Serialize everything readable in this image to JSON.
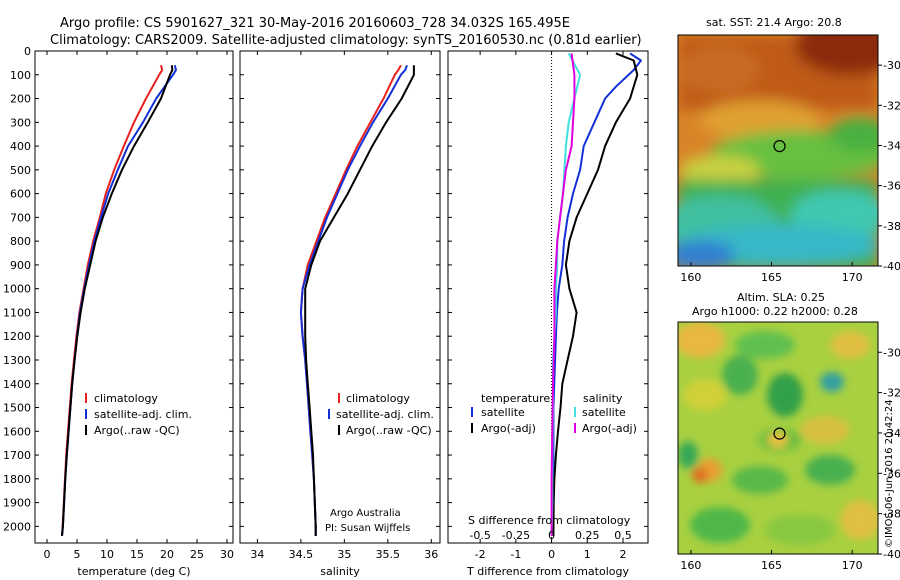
{
  "header": {
    "line1": "Argo profile: CS 5901627_321 30-May-2016 20160603_728 34.032S 165.495E",
    "line2": "Climatology: CARS2009. Satellite-adjusted climatology: synTS_20160530.nc (0.81d earlier)"
  },
  "colors": {
    "climatology": "#e8201e",
    "satellite": "#1230d8",
    "argo": "#000000",
    "sal_satellite": "#40e0e0",
    "sal_argo": "#e000e0"
  },
  "chart_data": [
    {
      "type": "line",
      "xlabel": "temperature (deg C)",
      "xlim": [
        -2,
        31
      ],
      "ylim": [
        2070,
        0
      ],
      "xticks": [
        "0",
        "5",
        "10",
        "15",
        "20",
        "25",
        "30"
      ],
      "yticks": [
        "0",
        "100",
        "200",
        "300",
        "400",
        "500",
        "600",
        "700",
        "800",
        "900",
        "1000",
        "1100",
        "1200",
        "1300",
        "1400",
        "1500",
        "1600",
        "1700",
        "1800",
        "1900",
        "2000"
      ],
      "legend": [
        "climatology",
        "satellite-adj. clim.",
        "Argo(..raw -QC)"
      ],
      "series": [
        {
          "name": "climatology",
          "color": "#e8201e",
          "points": [
            [
              19,
              60
            ],
            [
              19.2,
              80
            ],
            [
              18.7,
              100
            ],
            [
              16.5,
              200
            ],
            [
              14.5,
              300
            ],
            [
              12.8,
              400
            ],
            [
              11.2,
              500
            ],
            [
              9.8,
              600
            ],
            [
              8.8,
              700
            ],
            [
              7.7,
              800
            ],
            [
              6.8,
              900
            ],
            [
              6.1,
              1000
            ],
            [
              5.4,
              1100
            ],
            [
              4.9,
              1200
            ],
            [
              4.5,
              1300
            ],
            [
              4.1,
              1400
            ],
            [
              3.8,
              1500
            ],
            [
              3.5,
              1600
            ],
            [
              3.2,
              1700
            ],
            [
              3,
              1800
            ],
            [
              2.8,
              1900
            ],
            [
              2.6,
              2000
            ],
            [
              2.5,
              2040
            ]
          ]
        },
        {
          "name": "satellite-adj. clim.",
          "color": "#1230d8",
          "points": [
            [
              21.3,
              60
            ],
            [
              21.5,
              80
            ],
            [
              21,
              100
            ],
            [
              18.2,
              200
            ],
            [
              16,
              300
            ],
            [
              13.5,
              400
            ],
            [
              11.8,
              500
            ],
            [
              10.2,
              600
            ],
            [
              9,
              700
            ],
            [
              7.9,
              800
            ],
            [
              7,
              900
            ],
            [
              6.2,
              1000
            ],
            [
              5.5,
              1100
            ],
            [
              5,
              1200
            ],
            [
              4.6,
              1300
            ],
            [
              4.2,
              1400
            ],
            [
              3.9,
              1500
            ],
            [
              3.6,
              1600
            ],
            [
              3.3,
              1700
            ],
            [
              3.05,
              1800
            ],
            [
              2.85,
              1900
            ],
            [
              2.65,
              2000
            ],
            [
              2.5,
              2040
            ]
          ]
        },
        {
          "name": "Argo(..raw -QC)",
          "color": "#000000",
          "points": [
            [
              20.8,
              60
            ],
            [
              20.9,
              80
            ],
            [
              20.5,
              100
            ],
            [
              19,
              200
            ],
            [
              16.8,
              300
            ],
            [
              14.5,
              400
            ],
            [
              12.5,
              500
            ],
            [
              10.8,
              600
            ],
            [
              9.3,
              700
            ],
            [
              8.1,
              800
            ],
            [
              7.2,
              900
            ],
            [
              6.3,
              1000
            ],
            [
              5.6,
              1100
            ],
            [
              5.05,
              1200
            ],
            [
              4.6,
              1300
            ],
            [
              4.2,
              1400
            ],
            [
              3.9,
              1500
            ],
            [
              3.6,
              1600
            ],
            [
              3.3,
              1700
            ],
            [
              3.05,
              1800
            ],
            [
              2.85,
              1900
            ],
            [
              2.65,
              2000
            ],
            [
              2.5,
              2040
            ]
          ]
        }
      ]
    },
    {
      "type": "line",
      "xlabel": "salinity",
      "xlim": [
        33.8,
        36.1
      ],
      "ylim": [
        2070,
        0
      ],
      "xticks": [
        "34",
        "34.5",
        "35",
        "35.5",
        "36"
      ],
      "legend": [
        "climatology",
        "satellite-adj. clim.",
        "Argo(..raw -QC)"
      ],
      "series": [
        {
          "name": "climatology",
          "color": "#e8201e",
          "points": [
            [
              35.65,
              60
            ],
            [
              35.62,
              80
            ],
            [
              35.58,
              100
            ],
            [
              35.45,
              200
            ],
            [
              35.3,
              300
            ],
            [
              35.15,
              400
            ],
            [
              35.02,
              500
            ],
            [
              34.9,
              600
            ],
            [
              34.78,
              700
            ],
            [
              34.68,
              800
            ],
            [
              34.58,
              900
            ],
            [
              34.52,
              1000
            ],
            [
              34.5,
              1100
            ],
            [
              34.52,
              1200
            ],
            [
              34.55,
              1300
            ],
            [
              34.57,
              1400
            ],
            [
              34.59,
              1500
            ],
            [
              34.61,
              1600
            ],
            [
              34.63,
              1700
            ],
            [
              34.65,
              1800
            ],
            [
              34.66,
              1900
            ],
            [
              34.67,
              2000
            ],
            [
              34.67,
              2040
            ]
          ]
        },
        {
          "name": "satellite-adj. clim.",
          "color": "#1230d8",
          "points": [
            [
              35.72,
              60
            ],
            [
              35.7,
              80
            ],
            [
              35.65,
              100
            ],
            [
              35.5,
              200
            ],
            [
              35.33,
              300
            ],
            [
              35.18,
              400
            ],
            [
              35.04,
              500
            ],
            [
              34.92,
              600
            ],
            [
              34.8,
              700
            ],
            [
              34.7,
              800
            ],
            [
              34.6,
              900
            ],
            [
              34.52,
              1000
            ],
            [
              34.5,
              1100
            ],
            [
              34.52,
              1200
            ],
            [
              34.55,
              1300
            ],
            [
              34.57,
              1400
            ],
            [
              34.59,
              1500
            ],
            [
              34.61,
              1600
            ],
            [
              34.63,
              1700
            ],
            [
              34.65,
              1800
            ],
            [
              34.66,
              1900
            ],
            [
              34.67,
              2000
            ],
            [
              34.67,
              2040
            ]
          ]
        },
        {
          "name": "Argo(..raw -QC)",
          "color": "#000000",
          "points": [
            [
              35.8,
              60
            ],
            [
              35.8,
              100
            ],
            [
              35.66,
              200
            ],
            [
              35.48,
              300
            ],
            [
              35.32,
              400
            ],
            [
              35.18,
              500
            ],
            [
              35.04,
              600
            ],
            [
              34.88,
              700
            ],
            [
              34.72,
              800
            ],
            [
              34.62,
              900
            ],
            [
              34.55,
              1000
            ],
            [
              34.55,
              1100
            ],
            [
              34.55,
              1200
            ],
            [
              34.56,
              1300
            ],
            [
              34.58,
              1400
            ],
            [
              34.6,
              1500
            ],
            [
              34.62,
              1600
            ],
            [
              34.64,
              1700
            ],
            [
              34.65,
              1800
            ],
            [
              34.66,
              1900
            ],
            [
              34.67,
              2000
            ],
            [
              34.67,
              2040
            ]
          ]
        }
      ],
      "annotation": [
        "Argo Australia",
        "PI: Susan Wijffels"
      ]
    },
    {
      "type": "line",
      "xlabel": "T difference from climatology",
      "top_xlabel": "S difference from climatology",
      "xlim": [
        -2.9,
        2.7
      ],
      "ylim": [
        2070,
        0
      ],
      "xticks": [
        "-2",
        "-1",
        "0",
        "1",
        "2"
      ],
      "top_xticks": [
        "-0.5",
        "-0.25",
        "0",
        "0.25",
        "0.5"
      ],
      "legend": {
        "temperature_heading": "temperature",
        "salinity_heading": "salinity",
        "entries": [
          "satellite",
          "Argo(-adj)",
          "satellite",
          "Argo(-adj)"
        ]
      },
      "series": [
        {
          "name": "satellite",
          "color": "#1230d8",
          "points": [
            [
              2.2,
              10
            ],
            [
              2.5,
              40
            ],
            [
              2.3,
              80
            ],
            [
              1.8,
              150
            ],
            [
              1.5,
              200
            ],
            [
              1.2,
              300
            ],
            [
              0.9,
              400
            ],
            [
              0.8,
              500
            ],
            [
              0.6,
              600
            ],
            [
              0.45,
              700
            ],
            [
              0.35,
              800
            ],
            [
              0.3,
              900
            ],
            [
              0.2,
              1000
            ],
            [
              0.15,
              1100
            ],
            [
              0.12,
              1200
            ],
            [
              0.1,
              1300
            ],
            [
              0.05,
              1500
            ],
            [
              0.05,
              1700
            ],
            [
              0.05,
              1900
            ],
            [
              0.03,
              2040
            ]
          ]
        },
        {
          "name": "Argo(-adj)",
          "color": "#000000",
          "points": [
            [
              1.8,
              10
            ],
            [
              2.3,
              40
            ],
            [
              2.4,
              100
            ],
            [
              2.2,
              200
            ],
            [
              1.8,
              300
            ],
            [
              1.5,
              400
            ],
            [
              1.3,
              500
            ],
            [
              1,
              600
            ],
            [
              0.7,
              700
            ],
            [
              0.5,
              800
            ],
            [
              0.4,
              900
            ],
            [
              0.5,
              1000
            ],
            [
              0.7,
              1100
            ],
            [
              0.6,
              1200
            ],
            [
              0.45,
              1300
            ],
            [
              0.3,
              1400
            ],
            [
              0.25,
              1500
            ],
            [
              0.18,
              1600
            ],
            [
              0.12,
              1700
            ],
            [
              0.08,
              1800
            ],
            [
              0.06,
              1900
            ],
            [
              0.05,
              2040
            ]
          ]
        },
        {
          "name": "satellite",
          "color": "#40e0e0",
          "points": [
            [
              0.12,
              10
            ],
            [
              0.2,
              100
            ],
            [
              0.16,
              200
            ],
            [
              0.12,
              300
            ],
            [
              0.1,
              400
            ],
            [
              0.09,
              500
            ],
            [
              0.08,
              600
            ],
            [
              0.06,
              700
            ],
            [
              0.04,
              800
            ],
            [
              0.04,
              900
            ],
            [
              0.03,
              1000
            ],
            [
              0.03,
              1100
            ],
            [
              0.02,
              1200
            ],
            [
              0.01,
              1300
            ],
            [
              0.01,
              1500
            ],
            [
              0.005,
              1700
            ],
            [
              0.005,
              1900
            ],
            [
              0.0,
              2040
            ]
          ]
        },
        {
          "name": "Argo(-adj)",
          "color": "#e000e0",
          "points": [
            [
              0.14,
              10
            ],
            [
              0.16,
              100
            ],
            [
              0.16,
              200
            ],
            [
              0.15,
              300
            ],
            [
              0.14,
              400
            ],
            [
              0.1,
              500
            ],
            [
              0.08,
              600
            ],
            [
              0.06,
              700
            ],
            [
              0.04,
              800
            ],
            [
              0.03,
              900
            ],
            [
              0.02,
              1000
            ],
            [
              0.02,
              1200
            ],
            [
              0.01,
              1400
            ],
            [
              0.005,
              1600
            ],
            [
              0.0,
              1800
            ],
            [
              0.0,
              2040
            ]
          ]
        }
      ]
    }
  ],
  "map_top": {
    "title": "sat. SST: 21.4  Argo: 20.8",
    "xticks": [
      "160",
      "165",
      "170"
    ],
    "yticks": [
      "-30",
      "-32",
      "-34",
      "-36",
      "-38",
      "-40"
    ],
    "marker": {
      "lon": 165.495,
      "lat": -34.032
    }
  },
  "map_bottom": {
    "title1": "Altim. SLA: 0.25",
    "title2": "Argo h1000: 0.22  h2000: 0.28",
    "xticks": [
      "160",
      "165",
      "170"
    ],
    "yticks": [
      "-30",
      "-32",
      "-34",
      "-36",
      "-38",
      "-40"
    ],
    "marker": {
      "lon": 165.495,
      "lat": -34.032
    }
  },
  "watermark": "©IMOS 06-Jun-2016 20:42:24"
}
